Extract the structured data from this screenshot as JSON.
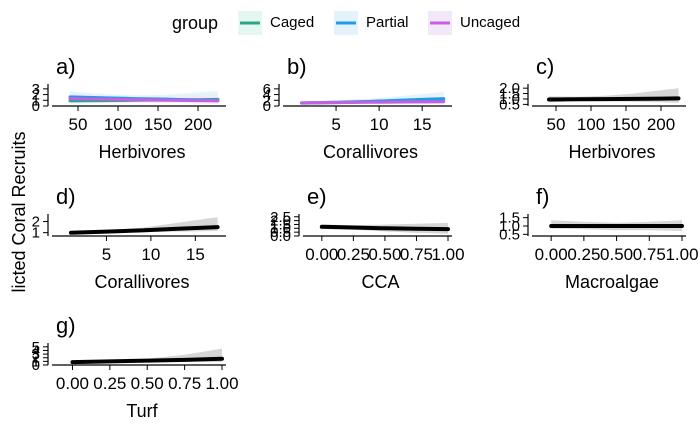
{
  "figure": {
    "y_axis_label": "licted Coral Recruits",
    "legend": {
      "title": "group",
      "entries": [
        {
          "label": "Caged",
          "color": "#2ca58d",
          "fill": "#e6f6f0"
        },
        {
          "label": "Partial",
          "color": "#1e9ce8",
          "fill": "#e3f2fb"
        },
        {
          "label": "Uncaged",
          "color": "#c85fe0",
          "fill": "#f2e8fa"
        }
      ]
    }
  },
  "chart_data": [
    {
      "panel": "a)",
      "type": "line",
      "xlabel": "Herbivores",
      "xlim": [
        30,
        230
      ],
      "ylim": [
        0,
        3.5
      ],
      "xticks": [
        {
          "v": 50,
          "t": "50"
        },
        {
          "v": 100,
          "t": "100"
        },
        {
          "v": 150,
          "t": "150"
        },
        {
          "v": 200,
          "t": "200"
        }
      ],
      "yticks": [
        {
          "v": 0,
          "t": "0"
        },
        {
          "v": 1,
          "t": "1"
        },
        {
          "v": 2,
          "t": "2"
        },
        {
          "v": 3,
          "t": "3"
        }
      ],
      "series": [
        {
          "name": "Caged",
          "color": "#2ca58d",
          "fill": "#e6f6f0",
          "x": [
            40,
            80,
            120,
            160,
            200,
            225
          ],
          "y": [
            0.9,
            0.95,
            1.0,
            1.05,
            1.1,
            1.15
          ],
          "lo": [
            0.4,
            0.5,
            0.55,
            0.5,
            0.45,
            0.4
          ],
          "hi": [
            1.6,
            1.6,
            1.7,
            2.0,
            2.4,
            2.7
          ]
        },
        {
          "name": "Partial",
          "color": "#1e9ce8",
          "fill": "#e3f2fb",
          "x": [
            40,
            80,
            120,
            160,
            200,
            225
          ],
          "y": [
            1.6,
            1.45,
            1.3,
            1.2,
            1.05,
            1.0
          ],
          "lo": [
            0.8,
            0.9,
            0.8,
            0.65,
            0.5,
            0.4
          ],
          "hi": [
            2.6,
            2.1,
            1.9,
            1.9,
            2.1,
            2.3
          ]
        },
        {
          "name": "Uncaged",
          "color": "#c85fe0",
          "fill": "#f2e8fa",
          "x": [
            40,
            80,
            120,
            160,
            200,
            225
          ],
          "y": [
            1.3,
            1.2,
            1.1,
            1.0,
            0.95,
            0.9
          ],
          "lo": [
            0.7,
            0.7,
            0.65,
            0.55,
            0.45,
            0.4
          ],
          "hi": [
            2.1,
            1.8,
            1.6,
            1.6,
            1.7,
            1.9
          ]
        }
      ]
    },
    {
      "panel": "b)",
      "type": "line",
      "xlabel": "Corallivores",
      "xlim": [
        0,
        18
      ],
      "ylim": [
        0,
        7
      ],
      "xticks": [
        {
          "v": 5,
          "t": "5"
        },
        {
          "v": 10,
          "t": "10"
        },
        {
          "v": 15,
          "t": "15"
        }
      ],
      "yticks": [
        {
          "v": 0,
          "t": "0"
        },
        {
          "v": 2,
          "t": "2"
        },
        {
          "v": 4,
          "t": "4"
        },
        {
          "v": 6,
          "t": "6"
        }
      ],
      "series": [
        {
          "name": "Caged",
          "color": "#2ca58d",
          "fill": "#e6f6f0",
          "x": [
            1,
            5,
            9,
            13,
            17.5
          ],
          "y": [
            1.0,
            1.2,
            1.5,
            1.9,
            2.3
          ],
          "lo": [
            0.6,
            0.8,
            0.9,
            0.9,
            0.9
          ],
          "hi": [
            1.5,
            1.9,
            2.6,
            3.6,
            4.8
          ]
        },
        {
          "name": "Partial",
          "color": "#1e9ce8",
          "fill": "#e3f2fb",
          "x": [
            1,
            5,
            9,
            13,
            17.5
          ],
          "y": [
            1.1,
            1.3,
            1.6,
            2.1,
            2.6
          ],
          "lo": [
            0.7,
            0.9,
            1.0,
            1.1,
            1.2
          ],
          "hi": [
            1.6,
            1.9,
            2.6,
            3.6,
            4.9
          ]
        },
        {
          "name": "Uncaged",
          "color": "#c85fe0",
          "fill": "#f2e8fa",
          "x": [
            1,
            5,
            9,
            13,
            17.5
          ],
          "y": [
            1.1,
            1.2,
            1.3,
            1.4,
            1.5
          ],
          "lo": [
            0.7,
            0.8,
            0.8,
            0.8,
            0.8
          ],
          "hi": [
            1.6,
            1.8,
            2.1,
            2.5,
            2.9
          ]
        }
      ]
    },
    {
      "panel": "c)",
      "type": "line",
      "xlabel": "Herbivores",
      "xlim": [
        30,
        230
      ],
      "ylim": [
        0.35,
        2.2
      ],
      "xticks": [
        {
          "v": 50,
          "t": "50"
        },
        {
          "v": 100,
          "t": "100"
        },
        {
          "v": 150,
          "t": "150"
        },
        {
          "v": 200,
          "t": "200"
        }
      ],
      "yticks": [
        {
          "v": 0.5,
          "t": "0.5"
        },
        {
          "v": 1.0,
          "t": "1.0"
        },
        {
          "v": 1.5,
          "t": "1.5"
        },
        {
          "v": 2.0,
          "t": "2.0"
        }
      ],
      "series": [
        {
          "name": "",
          "color": "#000000",
          "fill": "#cfcfcf",
          "x": [
            40,
            80,
            120,
            160,
            200,
            225
          ],
          "y": [
            0.95,
            0.97,
            0.99,
            1.01,
            1.03,
            1.05
          ],
          "lo": [
            0.7,
            0.8,
            0.8,
            0.75,
            0.7,
            0.65
          ],
          "hi": [
            1.25,
            1.2,
            1.3,
            1.5,
            1.8,
            2.0
          ]
        }
      ]
    },
    {
      "panel": "d)",
      "type": "line",
      "xlabel": "Corallivores",
      "xlim": [
        0,
        18
      ],
      "ylim": [
        0.7,
        2.5
      ],
      "xticks": [
        {
          "v": 5,
          "t": "5"
        },
        {
          "v": 10,
          "t": "10"
        },
        {
          "v": 15,
          "t": "15"
        }
      ],
      "yticks": [
        {
          "v": 1,
          "t": "1"
        },
        {
          "v": 2,
          "t": "2"
        }
      ],
      "series": [
        {
          "name": "",
          "color": "#000000",
          "fill": "#cfcfcf",
          "x": [
            1,
            5,
            9,
            13,
            17.5
          ],
          "y": [
            1.0,
            1.1,
            1.2,
            1.35,
            1.5
          ],
          "lo": [
            0.9,
            1.0,
            1.05,
            1.1,
            1.15
          ],
          "hi": [
            1.1,
            1.25,
            1.45,
            1.9,
            2.4
          ]
        }
      ]
    },
    {
      "panel": "e)",
      "type": "line",
      "xlabel": "CCA",
      "xlim": [
        -0.07,
        1.0
      ],
      "ylim": [
        0,
        2.6
      ],
      "xticks": [
        {
          "v": 0,
          "t": "0.00"
        },
        {
          "v": 0.25,
          "t": "0.25"
        },
        {
          "v": 0.5,
          "t": "0.50"
        },
        {
          "v": 0.75,
          "t": "0.75"
        },
        {
          "v": 1.0,
          "t": "1.00"
        }
      ],
      "yticks": [
        {
          "v": 0,
          "t": "0.0"
        },
        {
          "v": 0.5,
          "t": "0.5"
        },
        {
          "v": 1.0,
          "t": "1.0"
        },
        {
          "v": 1.5,
          "t": "1.5"
        },
        {
          "v": 2.0,
          "t": "2.0"
        },
        {
          "v": 2.5,
          "t": "2.5"
        }
      ],
      "series": [
        {
          "name": "",
          "color": "#000000",
          "fill": "#cfcfcf",
          "x": [
            0,
            0.25,
            0.5,
            0.75,
            1.0
          ],
          "y": [
            1.2,
            1.1,
            1.0,
            0.95,
            0.9
          ],
          "lo": [
            0.9,
            0.8,
            0.6,
            0.4,
            0.3
          ],
          "hi": [
            1.5,
            1.4,
            1.5,
            1.6,
            1.7
          ]
        }
      ]
    },
    {
      "panel": "f)",
      "type": "line",
      "xlabel": "Macroalgae",
      "xlim": [
        -0.07,
        1.0
      ],
      "ylim": [
        0.4,
        1.6
      ],
      "xticks": [
        {
          "v": 0,
          "t": "0.00"
        },
        {
          "v": 0.25,
          "t": "0.25"
        },
        {
          "v": 0.5,
          "t": "0.50"
        },
        {
          "v": 0.75,
          "t": "0.75"
        },
        {
          "v": 1.0,
          "t": "1.00"
        }
      ],
      "yticks": [
        {
          "v": 0.5,
          "t": "0.5"
        },
        {
          "v": 1.0,
          "t": "1.0"
        },
        {
          "v": 1.5,
          "t": "1.5"
        }
      ],
      "series": [
        {
          "name": "",
          "color": "#000000",
          "fill": "#cfcfcf",
          "x": [
            0,
            0.25,
            0.5,
            0.75,
            1.0
          ],
          "y": [
            1.0,
            1.0,
            1.0,
            1.0,
            1.0
          ],
          "lo": [
            0.85,
            0.8,
            0.75,
            0.75,
            0.7
          ],
          "hi": [
            1.35,
            1.25,
            1.2,
            1.25,
            1.35
          ]
        }
      ]
    },
    {
      "panel": "g)",
      "type": "line",
      "xlabel": "Turf",
      "xlim": [
        -0.07,
        1.0
      ],
      "ylim": [
        0,
        5.5
      ],
      "xticks": [
        {
          "v": 0,
          "t": "0.00"
        },
        {
          "v": 0.25,
          "t": "0.25"
        },
        {
          "v": 0.5,
          "t": "0.50"
        },
        {
          "v": 0.75,
          "t": "0.75"
        },
        {
          "v": 1.0,
          "t": "1.00"
        }
      ],
      "yticks": [
        {
          "v": 0,
          "t": "0"
        },
        {
          "v": 1,
          "t": "1"
        },
        {
          "v": 2,
          "t": "2"
        },
        {
          "v": 3,
          "t": "3"
        },
        {
          "v": 4,
          "t": "4"
        },
        {
          "v": 5,
          "t": "5"
        }
      ],
      "series": [
        {
          "name": "",
          "color": "#000000",
          "fill": "#cfcfcf",
          "x": [
            0,
            0.25,
            0.5,
            0.75,
            1.0
          ],
          "y": [
            0.8,
            1.0,
            1.2,
            1.4,
            1.7
          ],
          "lo": [
            0.6,
            0.8,
            0.9,
            0.9,
            0.8
          ],
          "hi": [
            1.0,
            1.3,
            1.7,
            2.8,
            4.5
          ]
        }
      ]
    }
  ]
}
